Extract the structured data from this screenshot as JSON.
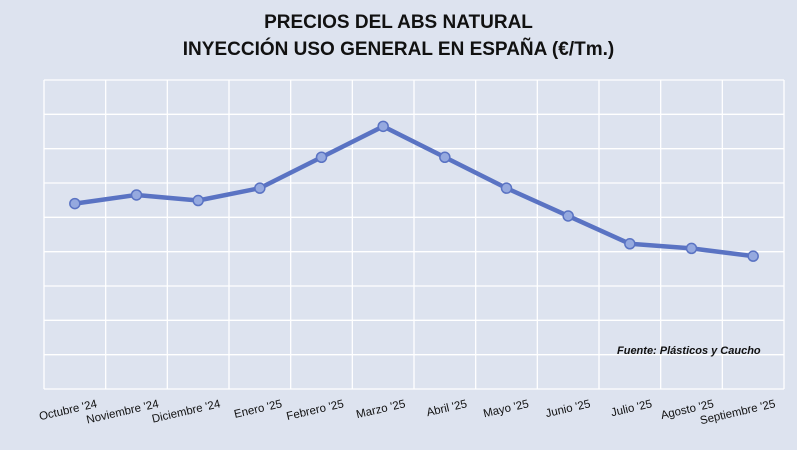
{
  "chart_data": {
    "type": "line",
    "title_line1": "PRECIOS DEL ABS NATURAL",
    "title_line2": "INYECCIÓN USO GENERAL EN ESPAÑA (€/Tm.)",
    "categories": [
      "Octubre '24",
      "Noviembre '24",
      "Diciembre '24",
      "Enero '25",
      "Febrero '25",
      "Marzo '25",
      "Abril '25",
      "Mayo '25",
      "Junio '25",
      "Julio '25",
      "Agosto '25",
      "Septiembre '25"
    ],
    "series": [
      {
        "values": [
          6.0,
          6.28,
          6.1,
          6.5,
          7.5,
          8.5,
          7.5,
          6.5,
          5.6,
          4.7,
          4.55,
          4.3
        ]
      }
    ],
    "ylim": [
      0,
      10
    ],
    "grid": true,
    "source": "Fuente: Plásticos y Caucho",
    "colors": {
      "line": "#5a73c3",
      "marker": "#95a9df",
      "grid": "#ffffff",
      "background": "#dde3ef"
    }
  }
}
